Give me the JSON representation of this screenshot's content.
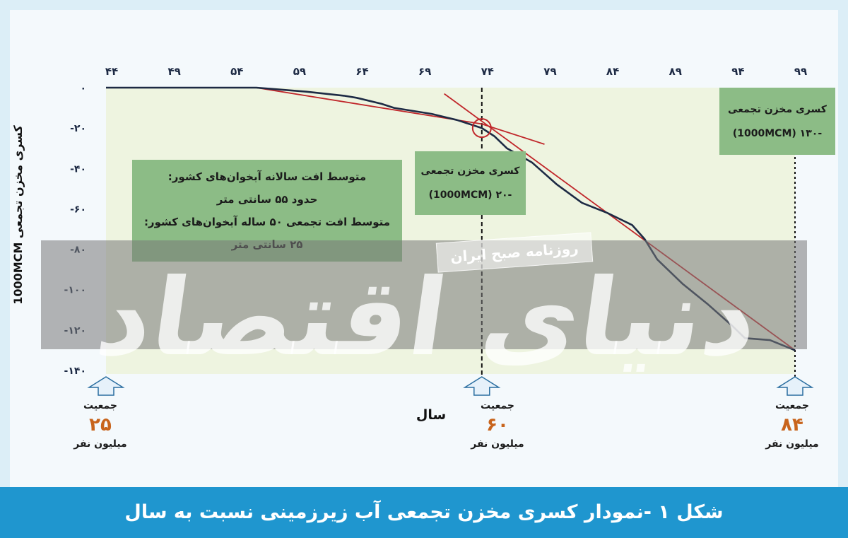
{
  "caption": "شکل ۱ -نمودار کسری مخزن تجمعی آب زیرزمینی نسبت به سال",
  "colors": {
    "panel_bg": "#f4f9fc",
    "plot_bg": "#eef4e0",
    "bar": "#1f96cf",
    "series": "#1d2a44",
    "trend": "#c0262a",
    "annotation_bg": "#8cbc86",
    "population_value": "#c8641c"
  },
  "chart_data": {
    "type": "line",
    "title": "شکل ۱ -نمودار کسری مخزن تجمعی آب زیرزمینی نسبت به سال",
    "xlabel": "سال",
    "ylabel": "کسری مخزن تجمعی 1000MCM",
    "x_ticks": [
      "۴۴",
      "۴۹",
      "۵۴",
      "۵۹",
      "۶۴",
      "۶۹",
      "۷۴",
      "۷۹",
      "۸۴",
      "۸۹",
      "۹۴",
      "۹۹"
    ],
    "y_ticks": [
      "۰",
      "-۲۰",
      "-۴۰",
      "-۶۰",
      "-۸۰",
      "-۱۰۰",
      "-۱۲۰",
      "-۱۴۰"
    ],
    "xlim": [
      44,
      99
    ],
    "ylim": [
      -140,
      0
    ],
    "x_axis_position": "top",
    "series": [
      {
        "role": "cumulative-deficit",
        "x": [
          44,
          47,
          50,
          53,
          56,
          57,
          60,
          63,
          64,
          66,
          67,
          70,
          72,
          74,
          75,
          76,
          78,
          80,
          82,
          84,
          86,
          87,
          88,
          90,
          92,
          94,
          95,
          97,
          99
        ],
        "y": [
          0,
          0,
          0,
          0,
          0,
          -0.5,
          -2,
          -4,
          -5,
          -8,
          -10,
          -13,
          -16,
          -20,
          -24,
          -30,
          -37,
          -48,
          -57,
          -62,
          -68,
          -75,
          -85,
          -97,
          -107,
          -118,
          -124,
          -125,
          -130
        ]
      }
    ],
    "trend_lines": [
      {
        "x": [
          56,
          74,
          79
        ],
        "y": [
          0,
          -18,
          -28
        ]
      },
      {
        "x": [
          71,
          99
        ],
        "y": [
          -3,
          -130
        ]
      }
    ],
    "markers": [
      {
        "x": 74,
        "y": -20,
        "type": "circle"
      }
    ],
    "reference_lines": [
      74,
      99
    ],
    "grid": false,
    "annotations": {
      "average_decline": [
        "متوسط افت سالانه آبخوان‌های کشور:",
        "حدود ۵۵ سانتی متر",
        "متوسط افت تجمعی ۵۰ ساله آبخوان‌های کشور:",
        "۲۵ سانتی متر"
      ],
      "deficit_74": [
        "کسری مخزن تجمعی",
        "-۲۰ (1000MCM)"
      ],
      "deficit_99": [
        "کسری مخزن تجمعی",
        "-۱۳۰ (1000MCM)"
      ]
    },
    "population": [
      {
        "x": 44,
        "label": "جمعیت",
        "value": "۲۵",
        "unit": "میلیون نفر"
      },
      {
        "x": 74,
        "label": "جمعیت",
        "value": "۶۰",
        "unit": "میلیون نفر"
      },
      {
        "x": 99,
        "label": "جمعیت",
        "value": "۸۴",
        "unit": "میلیون نفر"
      }
    ]
  },
  "watermark": {
    "logo": "دنیای اقتصاد",
    "newspaper": "روزنامه صبح ایران"
  }
}
